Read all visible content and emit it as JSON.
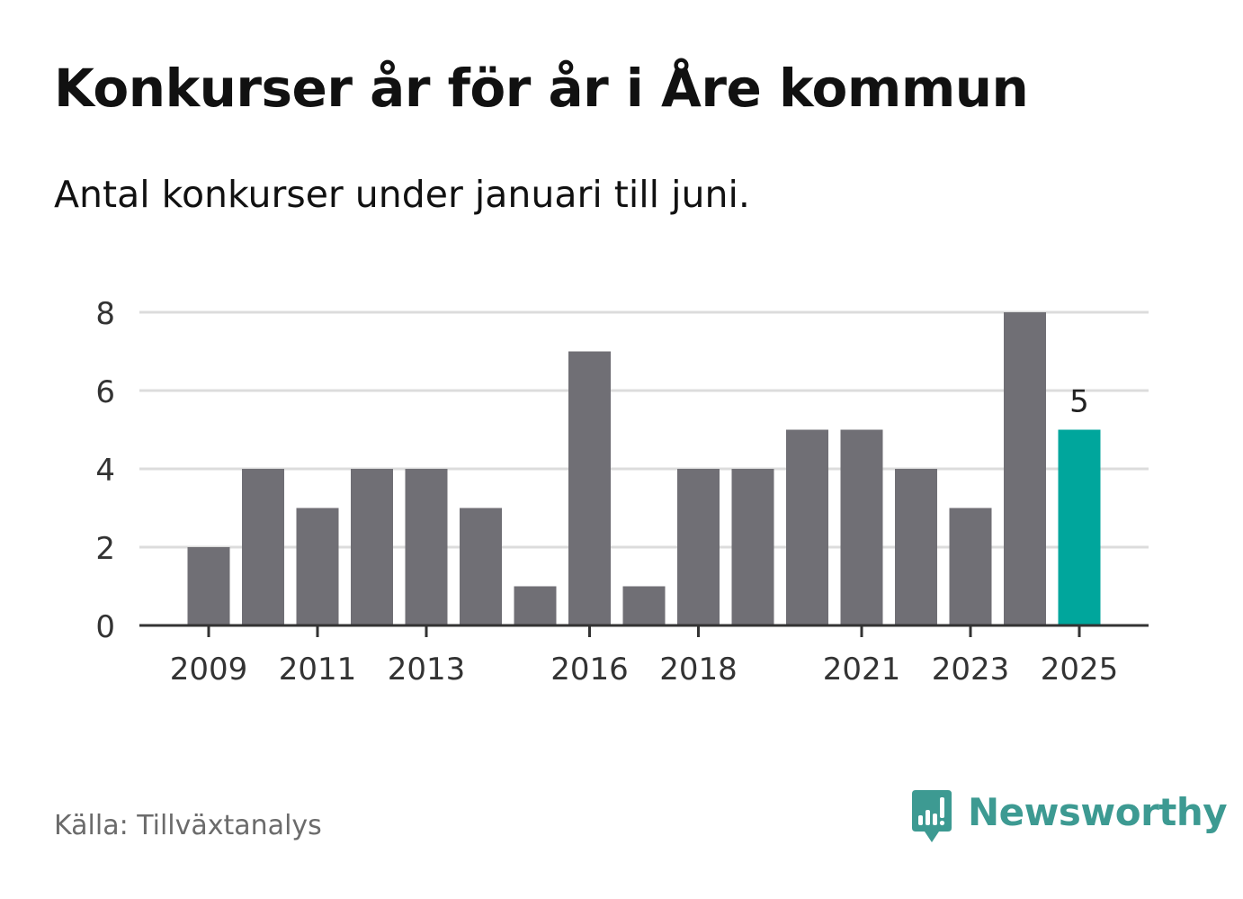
{
  "header": {
    "title": "Konkurser år för år i Åre kommun",
    "subtitle": "Antal konkurser under januari till juni."
  },
  "footer": {
    "source": "Källa: Tillväxtanalys",
    "brand": "Newsworthy",
    "brand_icon": "bar-chart-speech-bubble-icon"
  },
  "colors": {
    "bar": "#706f75",
    "highlight": "#00a69c",
    "grid": "#dcdcdc",
    "axis": "#333333",
    "brand": "#3d9a92"
  },
  "chart_data": {
    "type": "bar",
    "title": "Konkurser år för år i Åre kommun",
    "subtitle": "Antal konkurser under januari till juni.",
    "xlabel": "",
    "ylabel": "",
    "categories": [
      "2009",
      "2010",
      "2011",
      "2012",
      "2013",
      "2014",
      "2015",
      "2016",
      "2017",
      "2018",
      "2019",
      "2020",
      "2021",
      "2022",
      "2023",
      "2024",
      "2025"
    ],
    "values": [
      2,
      4,
      3,
      4,
      4,
      3,
      1,
      7,
      1,
      4,
      4,
      5,
      5,
      4,
      3,
      8,
      5
    ],
    "x_tick_labels": [
      "2009",
      "2011",
      "2013",
      "2016",
      "2018",
      "2021",
      "2023",
      "2025"
    ],
    "y_ticks": [
      0,
      2,
      4,
      6,
      8
    ],
    "ylim": [
      0,
      8
    ],
    "grid": true,
    "highlight_category": "2025",
    "data_labels": [
      {
        "category": "2025",
        "text": "5"
      }
    ]
  }
}
